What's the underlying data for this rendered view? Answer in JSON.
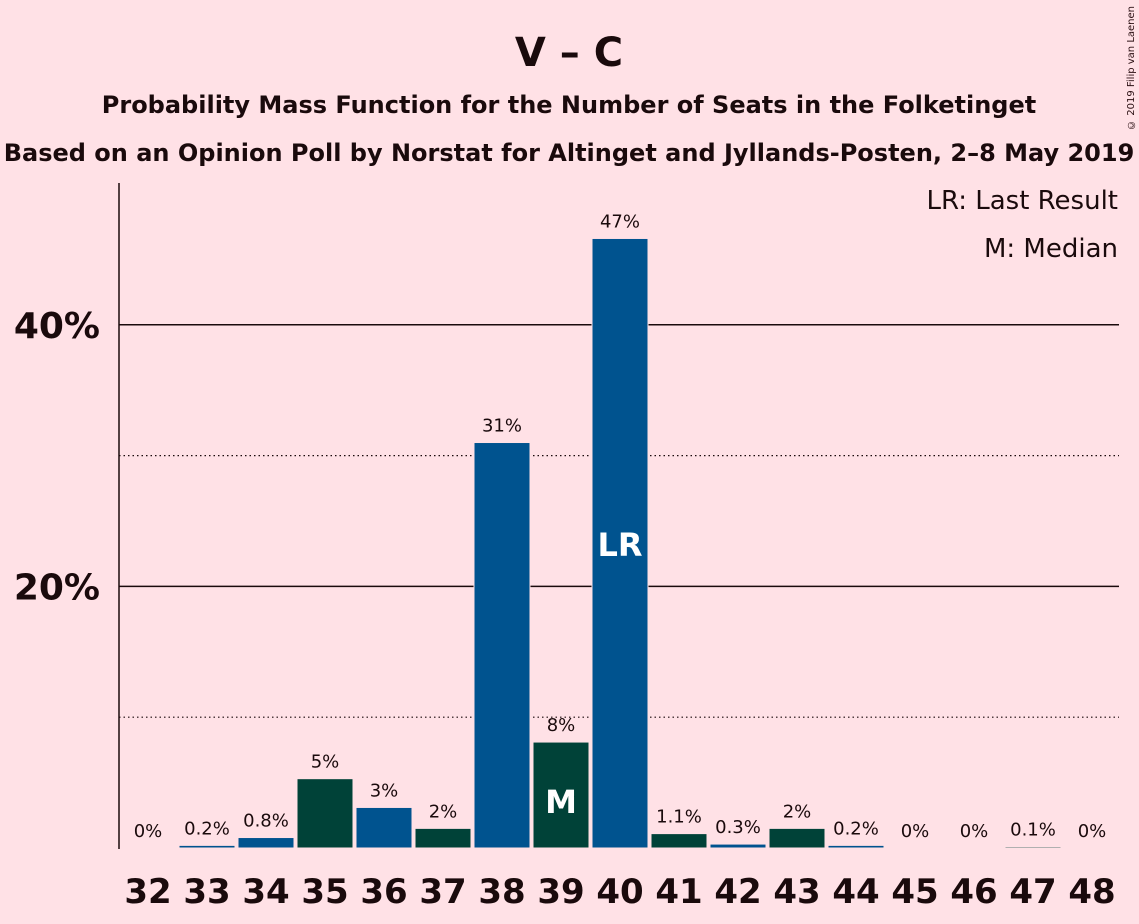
{
  "chart_data": {
    "type": "bar",
    "title": "V – C",
    "subtitle": "Probability Mass Function for the Number of Seats in the Folketinget",
    "subtitle2": "Based on an Opinion Poll by Norstat for Altinget and Jyllands-Posten, 2–8 May 2019",
    "categories": [
      "32",
      "33",
      "34",
      "35",
      "36",
      "37",
      "38",
      "39",
      "40",
      "41",
      "42",
      "43",
      "44",
      "45",
      "46",
      "47",
      "48"
    ],
    "values": [
      0,
      0.2,
      0.8,
      5.3,
      3.1,
      1.5,
      31,
      8.1,
      46.6,
      1.1,
      0.3,
      1.5,
      0.2,
      0,
      0,
      0.1,
      0
    ],
    "value_labels": [
      "0%",
      "0.2%",
      "0.8%",
      "5%",
      "3%",
      "2%",
      "31%",
      "8%",
      "47%",
      "1.1%",
      "0.3%",
      "2%",
      "0.2%",
      "0%",
      "0%",
      "0.1%",
      "0%"
    ],
    "bar_colors": [
      "#00538F",
      "#00538F",
      "#00538F",
      "#004238",
      "#00538F",
      "#004238",
      "#00538F",
      "#004238",
      "#00538F",
      "#004238",
      "#00538F",
      "#004238",
      "#00538F",
      "#004238",
      "#00538F",
      "#004238",
      "#00538F"
    ],
    "ylim": [
      0,
      50
    ],
    "yticks": [
      {
        "value": 20,
        "label": "20%"
      },
      {
        "value": 40,
        "label": "40%"
      }
    ],
    "dotted_gridlines": [
      10,
      30
    ],
    "markers": [
      {
        "category": "39",
        "text": "M"
      },
      {
        "category": "40",
        "text": "LR"
      }
    ],
    "legend": [
      "LR: Last Result",
      "M: Median"
    ],
    "legend_position": "top-right",
    "xlabel": "",
    "ylabel": ""
  },
  "credit": "© 2019 Filip van Laenen"
}
